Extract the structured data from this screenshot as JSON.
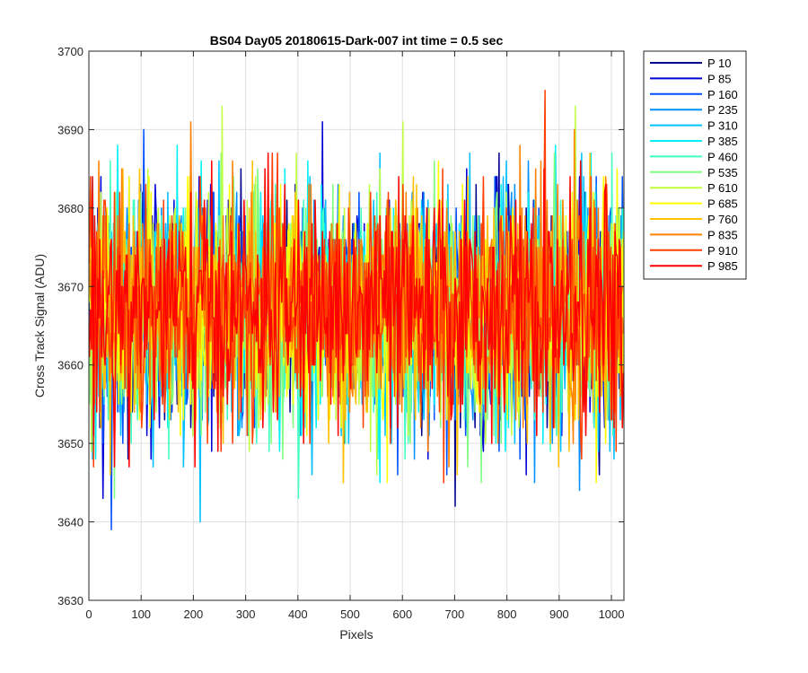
{
  "chart_data": {
    "type": "line",
    "title": "BS04 Day05 20180615-Dark-007 int time = 0.5 sec",
    "xlabel": "Pixels",
    "ylabel": "Cross Track Signal (ADU)",
    "xlim": [
      0,
      1024
    ],
    "ylim": [
      3630,
      3700
    ],
    "xticks": [
      0,
      100,
      200,
      300,
      400,
      500,
      600,
      700,
      800,
      900,
      1000
    ],
    "yticks": [
      3630,
      3640,
      3650,
      3660,
      3670,
      3680,
      3690,
      3700
    ],
    "grid": true,
    "legend_position": "outside-top-right",
    "noise_mean": 3667,
    "noise_range_typical": [
      3653,
      3683
    ],
    "series": [
      {
        "name": "P 10",
        "color": "#00008f"
      },
      {
        "name": "P 85",
        "color": "#0000d7"
      },
      {
        "name": "P 160",
        "color": "#0050ff"
      },
      {
        "name": "P 235",
        "color": "#0090ff"
      },
      {
        "name": "P 310",
        "color": "#00c0ff"
      },
      {
        "name": "P 385",
        "color": "#00f0f8"
      },
      {
        "name": "P 460",
        "color": "#40ffc0"
      },
      {
        "name": "P 535",
        "color": "#80ff80"
      },
      {
        "name": "P 610",
        "color": "#c0ff40"
      },
      {
        "name": "P 685",
        "color": "#ffff00"
      },
      {
        "name": "P 760",
        "color": "#ffc000"
      },
      {
        "name": "P 835",
        "color": "#ff8000"
      },
      {
        "name": "P 910",
        "color": "#ff4000"
      },
      {
        "name": "P 985",
        "color": "#ff0000"
      }
    ]
  }
}
